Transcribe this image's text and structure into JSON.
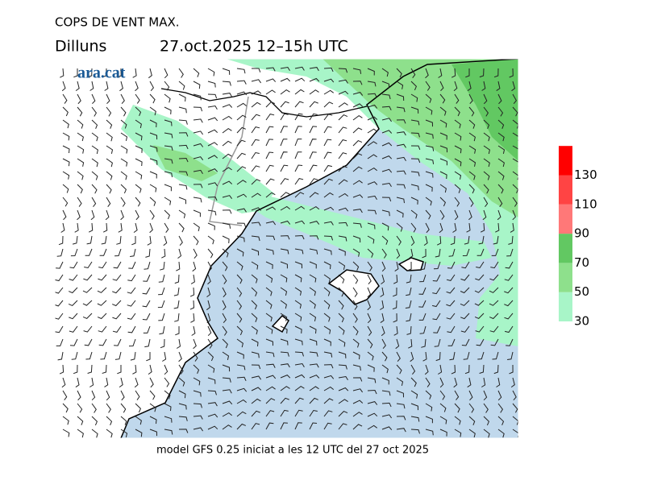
{
  "title": "COPS DE VENT MAX.",
  "day": "Dilluns",
  "time": "27.oct.2025 12–15h UTC",
  "logo": "ara.cat",
  "footer": "model GFS 0.25 iniciat a les 12 UTC del 27 oct 2025",
  "legend": {
    "ticks": [
      30,
      50,
      70,
      90,
      110,
      130
    ],
    "colors": [
      "#a8f5c8",
      "#8ee08c",
      "#62c862",
      "#ff7878",
      "#ff4444",
      "#ff0000"
    ]
  }
}
